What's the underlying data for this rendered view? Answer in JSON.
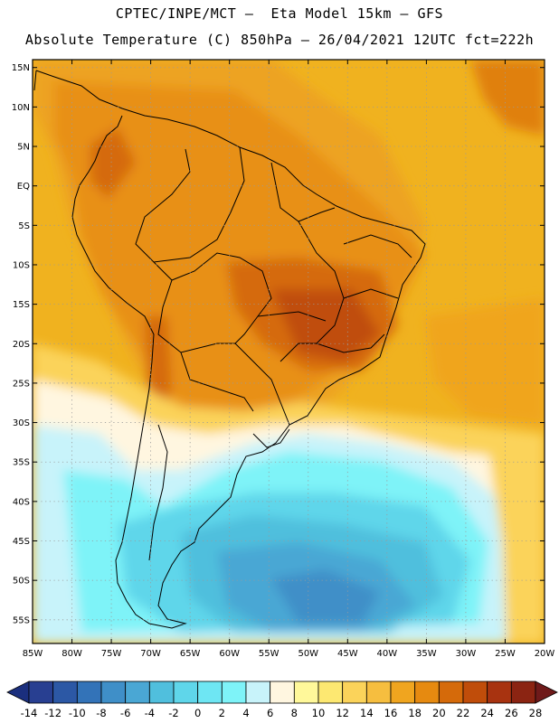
{
  "header": {
    "line1": "CPTEC/INPE/MCT –  Eta Model 15km – GFS",
    "line2": "Absolute Temperature (C) 850hPa – 26/04/2021 12UTC fct=222h"
  },
  "map": {
    "region": "South America",
    "lon_range": [
      -85,
      -20
    ],
    "lat_range": [
      -58,
      16
    ],
    "lon_ticks": [
      {
        "value": -85,
        "label": "85W"
      },
      {
        "value": -80,
        "label": "80W"
      },
      {
        "value": -75,
        "label": "75W"
      },
      {
        "value": -70,
        "label": "70W"
      },
      {
        "value": -65,
        "label": "65W"
      },
      {
        "value": -60,
        "label": "60W"
      },
      {
        "value": -55,
        "label": "55W"
      },
      {
        "value": -50,
        "label": "50W"
      },
      {
        "value": -45,
        "label": "45W"
      },
      {
        "value": -40,
        "label": "40W"
      },
      {
        "value": -35,
        "label": "35W"
      },
      {
        "value": -30,
        "label": "30W"
      },
      {
        "value": -25,
        "label": "25W"
      },
      {
        "value": -20,
        "label": "20W"
      }
    ],
    "lat_ticks": [
      {
        "value": 15,
        "label": "15N"
      },
      {
        "value": 10,
        "label": "10N"
      },
      {
        "value": 5,
        "label": "5N"
      },
      {
        "value": 0,
        "label": "EQ"
      },
      {
        "value": -5,
        "label": "5S"
      },
      {
        "value": -10,
        "label": "10S"
      },
      {
        "value": -15,
        "label": "15S"
      },
      {
        "value": -20,
        "label": "20S"
      },
      {
        "value": -25,
        "label": "25S"
      },
      {
        "value": -30,
        "label": "30S"
      },
      {
        "value": -35,
        "label": "35S"
      },
      {
        "value": -40,
        "label": "40S"
      },
      {
        "value": -45,
        "label": "45S"
      },
      {
        "value": -50,
        "label": "50S"
      },
      {
        "value": -55,
        "label": "55S"
      }
    ],
    "grid": "dotted"
  },
  "colorbar": {
    "labels": [
      "-14",
      "-12",
      "-10",
      "-8",
      "-6",
      "-4",
      "-2",
      "0",
      "2",
      "4",
      "6",
      "8",
      "10",
      "12",
      "14",
      "16",
      "18",
      "20",
      "22",
      "24",
      "26",
      "28"
    ],
    "colors": [
      "#1b2f7e",
      "#283f91",
      "#2c58a5",
      "#3373b8",
      "#3f8fc8",
      "#4aa7d4",
      "#50bfdd",
      "#5fd6ea",
      "#6ee6f3",
      "#7ef3f8",
      "#c8f3fa",
      "#fff6e0",
      "#fff89a",
      "#fde871",
      "#fbd35a",
      "#f6be3f",
      "#f0a51f",
      "#e68a10",
      "#d56a0a",
      "#c04d0a",
      "#a83310",
      "#8b2412",
      "#6f1a1a"
    ]
  }
}
